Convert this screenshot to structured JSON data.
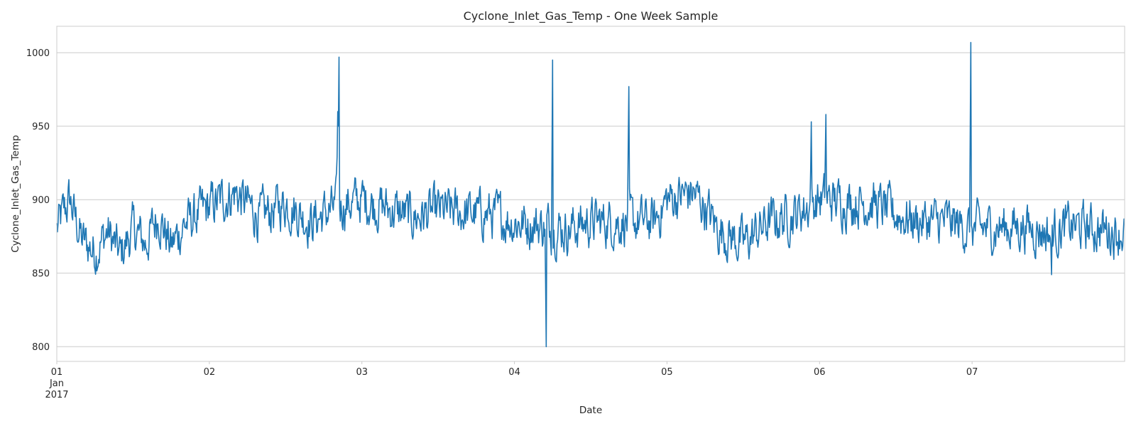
{
  "chart_data": {
    "type": "line",
    "title": "Cyclone_Inlet_Gas_Temp - One Week Sample",
    "xlabel": "Date",
    "ylabel": "Cyclone_Inlet_Gas_Temp",
    "xlim": [
      "2017-01-01 00:00",
      "2017-01-08 00:00"
    ],
    "ylim": [
      790,
      1018
    ],
    "grid": true,
    "line_color": "#1f77b4",
    "y_ticks": [
      800,
      850,
      900,
      950,
      1000
    ],
    "x_ticks": [
      {
        "date": "2017-01-01",
        "label": "01",
        "sublabel": "Jan",
        "year": "2017"
      },
      {
        "date": "2017-01-02",
        "label": "02"
      },
      {
        "date": "2017-01-03",
        "label": "03"
      },
      {
        "date": "2017-01-04",
        "label": "04"
      },
      {
        "date": "2017-01-05",
        "label": "05"
      },
      {
        "date": "2017-01-06",
        "label": "06"
      },
      {
        "date": "2017-01-07",
        "label": "07"
      }
    ],
    "series": [
      {
        "name": "Cyclone_Inlet_Gas_Temp",
        "points": [
          [
            "2017-01-01 00:00",
            880
          ],
          [
            "2017-01-01 02:00",
            900
          ],
          [
            "2017-01-01 04:00",
            872
          ],
          [
            "2017-01-01 06:00",
            865
          ],
          [
            "2017-01-01 08:00",
            878
          ],
          [
            "2017-01-01 10:00",
            862
          ],
          [
            "2017-01-01 12:00",
            880
          ],
          [
            "2017-01-01 14:00",
            870
          ],
          [
            "2017-01-01 16:00",
            890
          ],
          [
            "2017-01-01 18:00",
            868
          ],
          [
            "2017-01-01 20:00",
            883
          ],
          [
            "2017-01-02 00:00",
            895
          ],
          [
            "2017-01-02 04:00",
            905
          ],
          [
            "2017-01-02 08:00",
            888
          ],
          [
            "2017-01-02 12:00",
            898
          ],
          [
            "2017-01-02 16:00",
            885
          ],
          [
            "2017-01-02 20:00",
            895
          ],
          [
            "2017-01-03 00:00",
            900
          ],
          [
            "2017-01-03 08:00",
            888
          ],
          [
            "2017-01-03 12:00",
            892
          ],
          [
            "2017-01-03 20:00",
            890
          ],
          [
            "2017-01-04 00:00",
            885
          ],
          [
            "2017-01-04 08:00",
            880
          ],
          [
            "2017-01-04 12:00",
            885
          ],
          [
            "2017-01-04 16:00",
            885
          ],
          [
            "2017-01-04 22:00",
            885
          ],
          [
            "2017-01-05 00:00",
            900
          ],
          [
            "2017-01-05 04:00",
            905
          ],
          [
            "2017-01-05 06:00",
            895
          ],
          [
            "2017-01-05 08:00",
            880
          ],
          [
            "2017-01-05 12:00",
            870
          ],
          [
            "2017-01-05 16:00",
            885
          ],
          [
            "2017-01-05 20:00",
            890
          ],
          [
            "2017-01-06 00:00",
            900
          ],
          [
            "2017-01-06 08:00",
            898
          ],
          [
            "2017-01-06 12:00",
            890
          ],
          [
            "2017-01-06 16:00",
            885
          ],
          [
            "2017-01-06 20:00",
            885
          ],
          [
            "2017-01-07 00:00",
            880
          ],
          [
            "2017-01-07 08:00",
            882
          ],
          [
            "2017-01-07 12:00",
            878
          ],
          [
            "2017-01-07 16:00",
            882
          ],
          [
            "2017-01-07 20:00",
            880
          ],
          [
            "2017-01-08 00:00",
            878
          ]
        ],
        "spikes": [
          [
            "2017-01-02 20:10",
            960
          ],
          [
            "2017-01-02 20:25",
            997
          ],
          [
            "2017-01-04 05:00",
            800
          ],
          [
            "2017-01-04 06:00",
            995
          ],
          [
            "2017-01-04 18:00",
            977
          ],
          [
            "2017-01-05 22:40",
            953
          ],
          [
            "2017-01-06 01:00",
            958
          ],
          [
            "2017-01-06 23:50",
            1007
          ],
          [
            "2017-01-07 12:30",
            849
          ]
        ]
      }
    ]
  }
}
